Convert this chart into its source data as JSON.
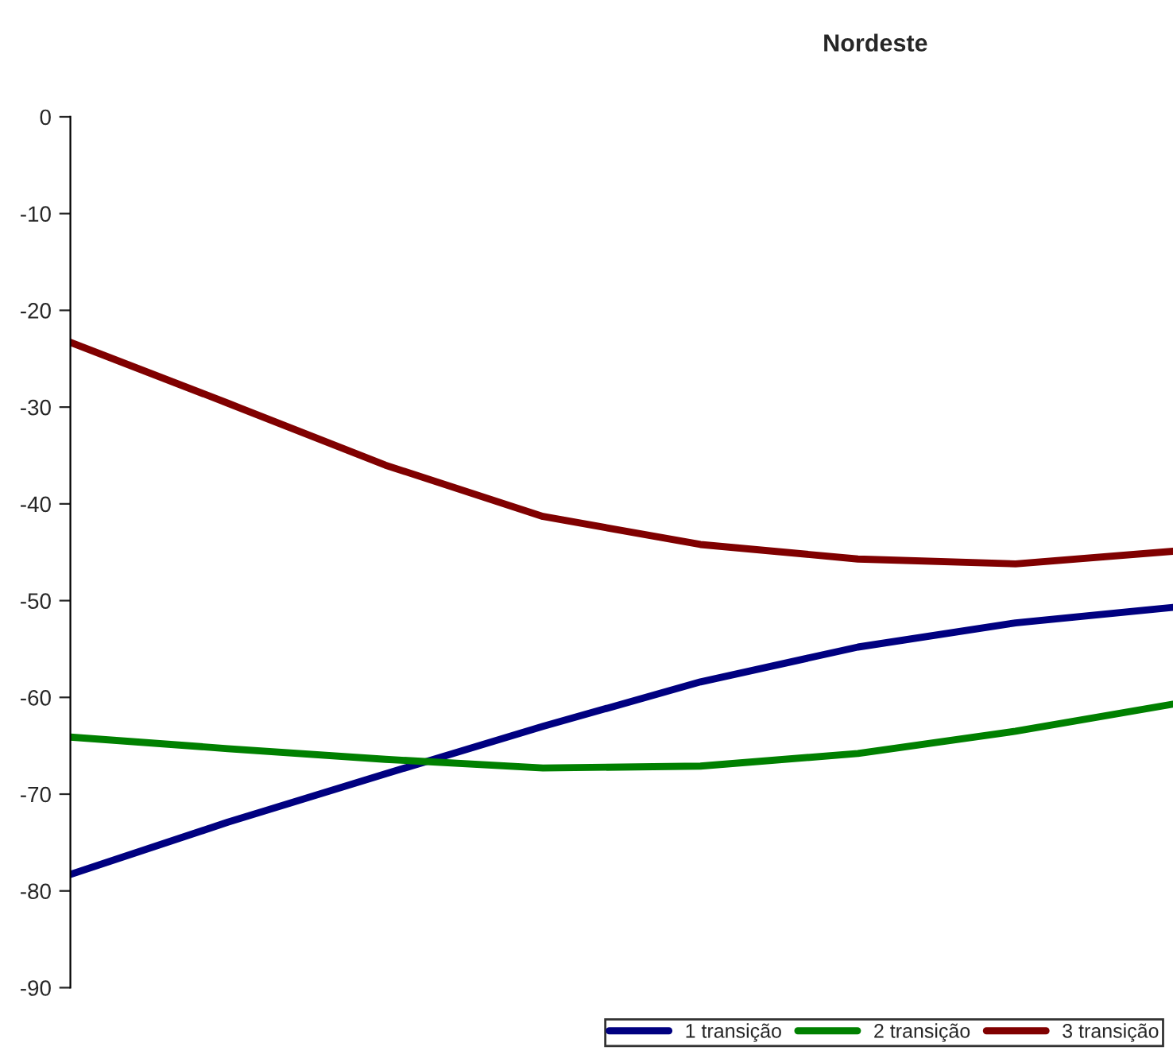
{
  "chart_data": {
    "type": "line",
    "title": "Nordeste",
    "categories": [
      null,
      null,
      null,
      null,
      null,
      null,
      null,
      null
    ],
    "series": [
      {
        "name": "1 transição",
        "color": "#000080",
        "values": [
          -78.3,
          -72.9,
          -67.9,
          -63.0,
          -58.4,
          -54.8,
          -52.3,
          -50.7
        ]
      },
      {
        "name": "2 transição",
        "color": "#008000",
        "values": [
          -64.1,
          -65.3,
          -66.4,
          -67.3,
          -67.1,
          -65.8,
          -63.5,
          -60.7
        ]
      },
      {
        "name": "3 transição",
        "color": "#800000",
        "values": [
          -23.3,
          -29.6,
          -36.0,
          -41.3,
          -44.2,
          -45.7,
          -46.2,
          -44.9
        ]
      }
    ],
    "ylim": [
      -90,
      0
    ],
    "yticks": [
      -90,
      -80,
      -70,
      -60,
      -50,
      -40,
      -30,
      -20,
      -10,
      0
    ],
    "grid": false,
    "legend": "bottom",
    "marker": "none",
    "line_style": "solid",
    "tick_labels": "y"
  }
}
